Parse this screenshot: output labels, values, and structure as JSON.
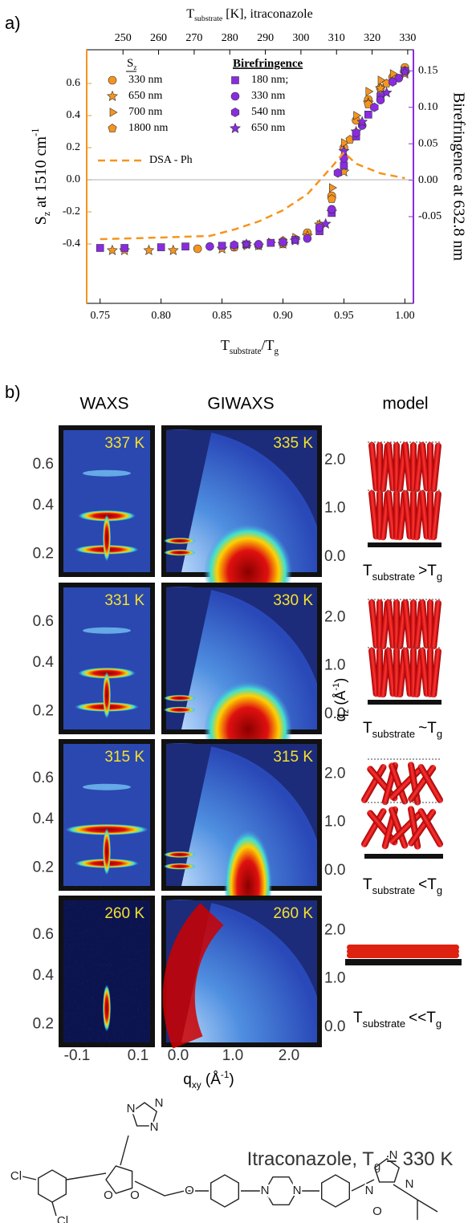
{
  "chart_data": {
    "type": "scatter",
    "panel_label": "a)",
    "top_axis_label": {
      "t": "T",
      "sub": "substrate",
      "rest": " [K], itraconazole"
    },
    "xlabel": {
      "t": "T",
      "sub": "substrate",
      "rest": "/T",
      "sub2": "g"
    },
    "ylabel": {
      "t": "S",
      "sub": "z",
      "rest": " at 1510 cm",
      "sup": "-1"
    },
    "y2label": "Birefringence at 632.8 nm",
    "xlim": [
      0.739,
      1.007
    ],
    "xticks": [
      0.75,
      {
        "value": 0.8,
        "label": "0.80"
      },
      0.85,
      {
        "value": 0.9,
        "label": "0.90"
      },
      0.95,
      {
        "value": 1.0,
        "label": "1.00"
      }
    ],
    "x2lim": [
      239.8,
      331.6
    ],
    "x2ticks": [
      250,
      260,
      270,
      280,
      290,
      300,
      310,
      320,
      330
    ],
    "ylim": [
      -0.77,
      0.81
    ],
    "yticks": [
      -0.4,
      -0.2,
      {
        "value": 0,
        "label": "0.0"
      },
      0.2,
      0.4,
      0.6
    ],
    "y2lim": [
      -0.169,
      0.179
    ],
    "y2ticks": [
      -0.05,
      {
        "value": 0,
        "label": "0.00"
      },
      0.05,
      {
        "value": 0.1,
        "label": "0.10"
      },
      0.15
    ],
    "left_axis_color": "#f7941d",
    "right_axis_color": "#8a2be2",
    "legend_groups": [
      {
        "t": "S",
        "sub": "z"
      },
      "Birefringence"
    ],
    "series": [
      {
        "name": "330 nm",
        "group": 0,
        "marker": "circle",
        "color": "#f7941d",
        "x": [
          0.83,
          0.86,
          0.88,
          0.9,
          0.92,
          0.94,
          0.95,
          0.96,
          0.97,
          0.98,
          0.99,
          1.0
        ],
        "values": [
          -0.43,
          -0.42,
          -0.41,
          -0.4,
          -0.33,
          -0.1,
          0.2,
          0.37,
          0.5,
          0.57,
          0.64,
          0.7
        ]
      },
      {
        "name": "650 nm",
        "group": 0,
        "marker": "star",
        "color": "#f7941d",
        "x": [
          0.76,
          0.77,
          0.79,
          0.81,
          0.85,
          0.88,
          0.9,
          0.92,
          0.93,
          0.94,
          0.95,
          0.96,
          0.97,
          0.98,
          1.0
        ],
        "values": [
          -0.44,
          -0.44,
          -0.44,
          -0.44,
          -0.43,
          -0.41,
          -0.4,
          -0.35,
          -0.28,
          -0.2,
          0.05,
          0.3,
          0.48,
          0.57,
          0.66
        ]
      },
      {
        "name": "700 nm",
        "group": 0,
        "marker": "triangle",
        "color": "#f7941d",
        "x": [
          0.87,
          0.89,
          0.91,
          0.93,
          0.94,
          0.95,
          0.96,
          0.97,
          0.98,
          0.99
        ],
        "values": [
          -0.41,
          -0.39,
          -0.36,
          -0.28,
          -0.05,
          0.23,
          0.4,
          0.55,
          0.62,
          0.66
        ]
      },
      {
        "name": "1800 nm",
        "group": 0,
        "marker": "pentagon",
        "color": "#f7941d",
        "x": [
          0.86,
          0.9,
          0.94,
          0.955,
          0.97,
          0.985,
          1.0
        ],
        "values": [
          -0.42,
          -0.38,
          -0.12,
          0.25,
          0.47,
          0.6,
          0.68
        ]
      },
      {
        "name": "180 nm;",
        "group": 1,
        "axis": "y2",
        "marker": "square",
        "color": "#8a2be2",
        "x": [
          0.75,
          0.77,
          0.8,
          0.82,
          0.85,
          0.87,
          0.89,
          0.91,
          0.93,
          0.94,
          0.95,
          0.96,
          0.97,
          0.98,
          1.0
        ],
        "values": [
          -0.093,
          -0.093,
          -0.092,
          -0.091,
          -0.09,
          -0.088,
          -0.086,
          -0.082,
          -0.07,
          -0.045,
          0.02,
          0.06,
          0.09,
          0.115,
          0.15
        ]
      },
      {
        "name": "330 nm",
        "group": 1,
        "axis": "y2",
        "marker": "circle",
        "color": "#8a2be2",
        "x": [
          0.84,
          0.88,
          0.92,
          0.94,
          0.95,
          0.965,
          0.98,
          0.995
        ],
        "values": [
          -0.091,
          -0.088,
          -0.08,
          -0.04,
          0.03,
          0.075,
          0.11,
          0.14
        ]
      },
      {
        "name": "540 nm",
        "group": 1,
        "axis": "y2",
        "marker": "hexagon",
        "color": "#8a2be2",
        "x": [
          0.86,
          0.9,
          0.93,
          0.945,
          0.96,
          0.975,
          0.99
        ],
        "values": [
          -0.089,
          -0.085,
          -0.065,
          0.01,
          0.065,
          0.1,
          0.135
        ]
      },
      {
        "name": "650 nm",
        "group": 1,
        "axis": "y2",
        "marker": "star",
        "color": "#8a2be2",
        "x": [
          0.87,
          0.91,
          0.935,
          0.95,
          0.965,
          0.985,
          1.0
        ],
        "values": [
          -0.088,
          -0.083,
          -0.06,
          0.04,
          0.08,
          0.12,
          0.148
        ]
      },
      {
        "name": "DSA - Ph",
        "marker": "dashed-line",
        "color": "#f7941d",
        "x": [
          0.75,
          0.8,
          0.84,
          0.86,
          0.88,
          0.9,
          0.92,
          0.94,
          0.95,
          0.96,
          0.98,
          1.0
        ],
        "values": [
          -0.37,
          -0.36,
          -0.35,
          -0.31,
          -0.26,
          -0.19,
          -0.09,
          0.08,
          0.17,
          0.1,
          0.04,
          0.01
        ]
      }
    ]
  },
  "panel_b": {
    "label": "b)",
    "columns": [
      "WAXS",
      "GIWAXS",
      "model"
    ],
    "rows": [
      {
        "waxs_temp": "337 K",
        "giwaxs_temp": "335 K",
        "relation": ">"
      },
      {
        "waxs_temp": "331 K",
        "giwaxs_temp": "330 K",
        "relation": "~"
      },
      {
        "waxs_temp": "315 K",
        "giwaxs_temp": "315 K",
        "relation": "<"
      },
      {
        "waxs_temp": "260 K",
        "giwaxs_temp": "260 K",
        "relation": "<<"
      }
    ],
    "waxs_yticks": [
      "0.6",
      "0.4",
      "0.2"
    ],
    "giwaxs_yticks": [
      "2.0",
      "1.0",
      "0.0"
    ],
    "waxs_xticks": [
      "-0.1",
      "0.1"
    ],
    "giwaxs_xticks": [
      "0.0",
      "1.0",
      "2.0"
    ],
    "qz_label": {
      "t": "q",
      "sub": "z",
      "rest": " (Å",
      "sup": "-1",
      "end": ")"
    },
    "qxy_label": {
      "t": "q",
      "sub": "xy",
      "rest": " (Å",
      "sup": "-1",
      "end": ")"
    },
    "model_caption": {
      "t": "T",
      "sub": "substrate",
      "g": "T",
      "gsub": "g"
    }
  },
  "molecule": {
    "title": {
      "t": "Itraconazole, T",
      "sub": "g",
      "rest": " = 330 K"
    },
    "atoms": [
      "N",
      "N",
      "N",
      "Cl",
      "Cl",
      "O",
      "O",
      "O",
      "N",
      "N",
      "N",
      "N",
      "N",
      "O"
    ]
  }
}
